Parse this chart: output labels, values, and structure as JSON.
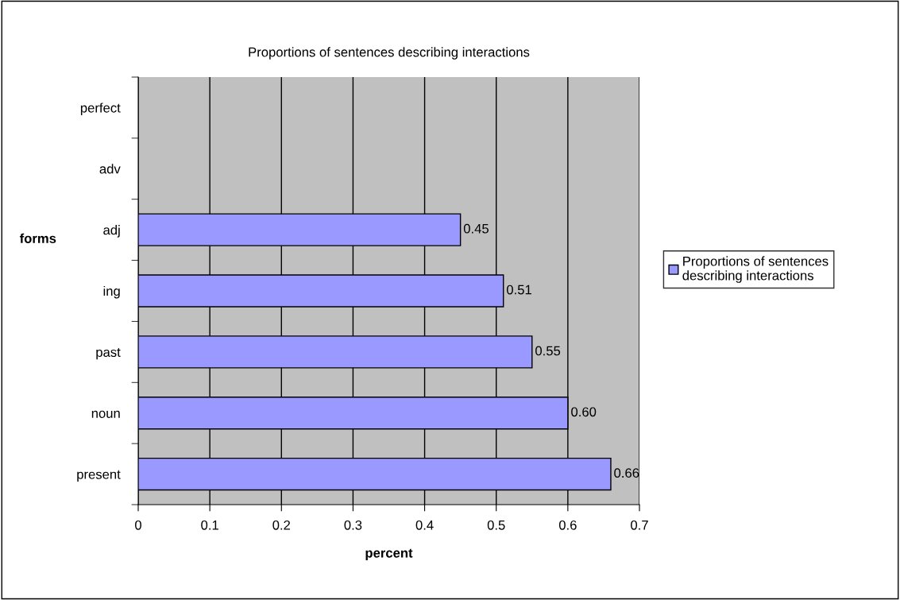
{
  "chart_data": {
    "type": "bar",
    "orientation": "horizontal",
    "title": "Proportions of sentences describing interactions",
    "xlabel": "percent",
    "ylabel": "forms",
    "categories": [
      "perfect",
      "adv",
      "adj",
      "ing",
      "past",
      "noun",
      "present"
    ],
    "series": [
      {
        "name": "Proportions of sentences describing interactions",
        "color": "#9999ff",
        "values": [
          null,
          null,
          0.45,
          0.51,
          0.55,
          0.6,
          0.66
        ],
        "value_labels": [
          null,
          null,
          "0.45",
          "0.51",
          "0.55",
          "0.60",
          "0.66"
        ]
      }
    ],
    "xlim": [
      0,
      0.7
    ],
    "xticks": [
      0,
      0.1,
      0.2,
      0.3,
      0.4,
      0.5,
      0.6,
      0.7
    ],
    "grid": "x",
    "legend": "right"
  }
}
